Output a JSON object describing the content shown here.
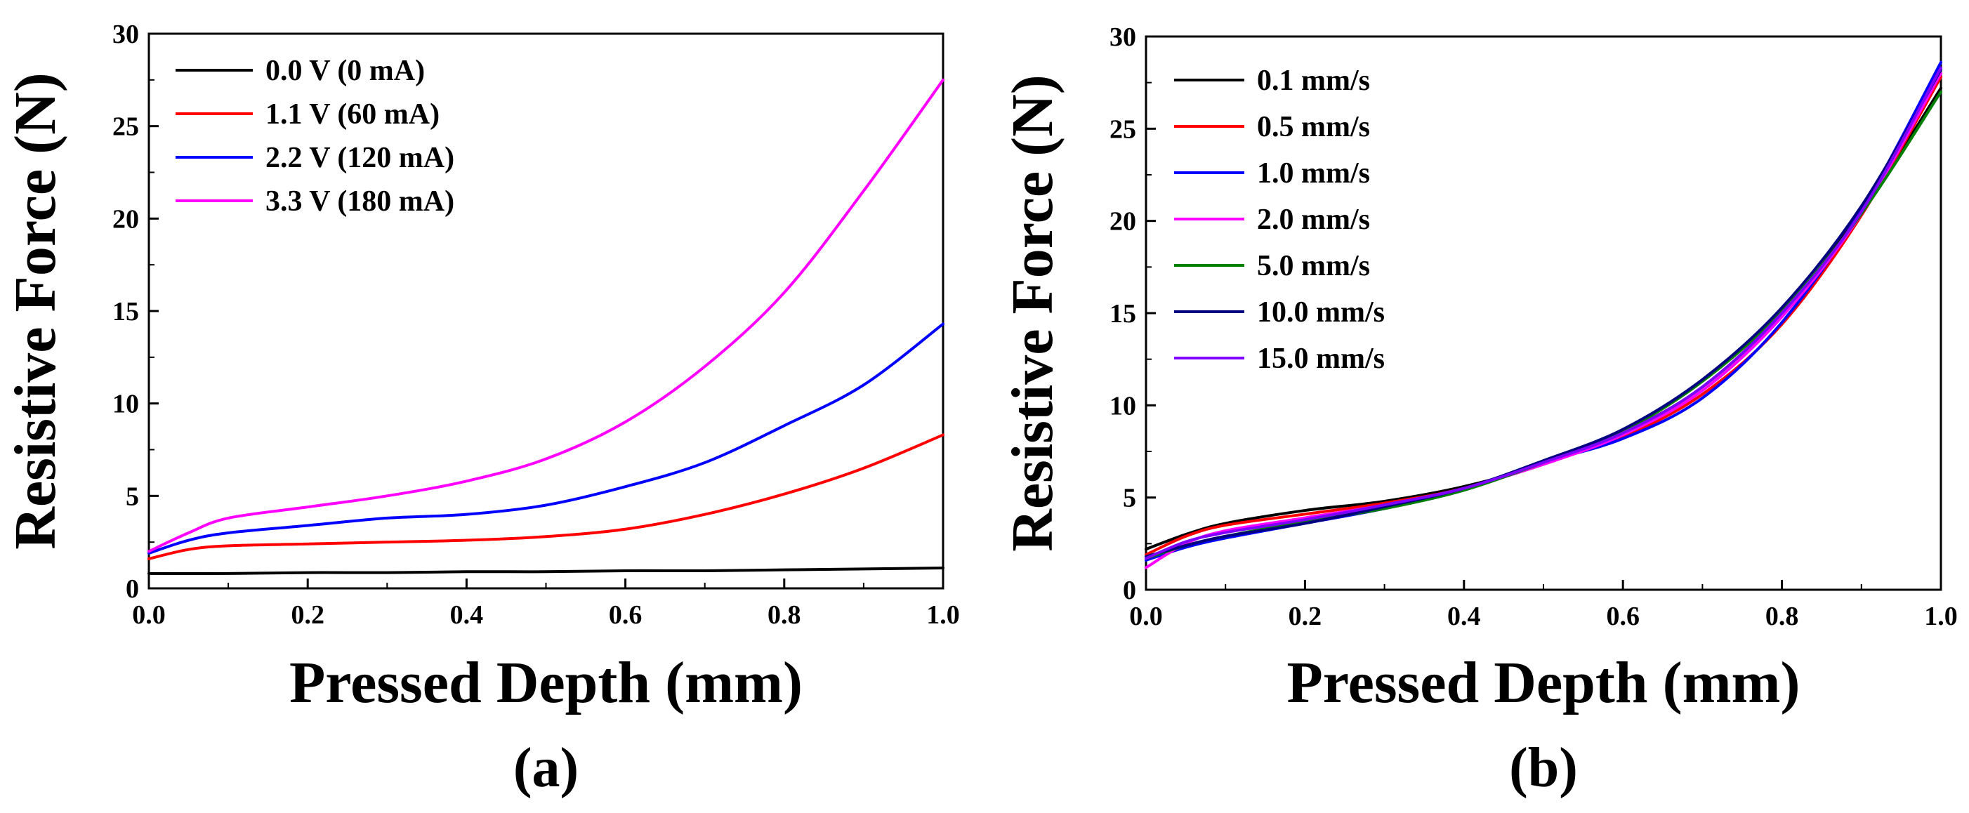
{
  "chart_data": [
    {
      "type": "line",
      "panel_label": "(a)",
      "xlabel": "Pressed Depth (mm)",
      "ylabel": "Resistive Force (N)",
      "xlim": [
        0.0,
        1.0
      ],
      "ylim": [
        0,
        30
      ],
      "xticks": [
        0.0,
        0.2,
        0.4,
        0.6,
        0.8,
        1.0
      ],
      "xtick_labels": [
        "0.0",
        "0.2",
        "0.4",
        "0.6",
        "0.8",
        "1.0"
      ],
      "yticks": [
        0,
        5,
        10,
        15,
        20,
        25,
        30
      ],
      "ytick_labels": [
        "0",
        "5",
        "10",
        "15",
        "20",
        "25",
        "30"
      ],
      "grid": false,
      "legend_position": "top-left",
      "series": [
        {
          "name": "0.0 V (0 mA)",
          "color": "#000000",
          "x": [
            0.0,
            0.1,
            0.2,
            0.3,
            0.4,
            0.5,
            0.6,
            0.7,
            0.8,
            0.9,
            1.0
          ],
          "y": [
            0.8,
            0.8,
            0.85,
            0.85,
            0.9,
            0.9,
            0.95,
            0.95,
            1.0,
            1.05,
            1.1
          ]
        },
        {
          "name": "1.1 V (60 mA)",
          "color": "#ff0000",
          "x": [
            0.0,
            0.05,
            0.1,
            0.2,
            0.3,
            0.4,
            0.5,
            0.6,
            0.7,
            0.8,
            0.9,
            1.0
          ],
          "y": [
            1.6,
            2.1,
            2.3,
            2.4,
            2.5,
            2.6,
            2.8,
            3.2,
            4.0,
            5.1,
            6.5,
            8.3
          ]
        },
        {
          "name": "2.2 V (120 mA)",
          "color": "#0000ff",
          "x": [
            0.0,
            0.05,
            0.1,
            0.2,
            0.3,
            0.4,
            0.5,
            0.6,
            0.7,
            0.8,
            0.9,
            1.0
          ],
          "y": [
            1.9,
            2.6,
            3.0,
            3.4,
            3.8,
            4.0,
            4.5,
            5.5,
            6.8,
            8.8,
            11.0,
            14.3
          ]
        },
        {
          "name": "3.3 V (180 mA)",
          "color": "#ff00ff",
          "x": [
            0.0,
            0.05,
            0.1,
            0.2,
            0.3,
            0.4,
            0.5,
            0.6,
            0.7,
            0.8,
            0.9,
            1.0
          ],
          "y": [
            2.0,
            3.0,
            3.8,
            4.4,
            5.0,
            5.8,
            7.0,
            9.0,
            12.0,
            16.0,
            21.5,
            27.5
          ]
        }
      ]
    },
    {
      "type": "line",
      "panel_label": "(b)",
      "xlabel": "Pressed Depth (mm)",
      "ylabel": "Resistive Force (N)",
      "xlim": [
        0.0,
        1.0
      ],
      "ylim": [
        0,
        30
      ],
      "xticks": [
        0.0,
        0.2,
        0.4,
        0.6,
        0.8,
        1.0
      ],
      "xtick_labels": [
        "0.0",
        "0.2",
        "0.4",
        "0.6",
        "0.8",
        "1.0"
      ],
      "yticks": [
        0,
        5,
        10,
        15,
        20,
        25,
        30
      ],
      "ytick_labels": [
        "0",
        "5",
        "10",
        "15",
        "20",
        "25",
        "30"
      ],
      "grid": false,
      "legend_position": "top-left",
      "series": [
        {
          "name": "0.1 mm/s",
          "color": "#000000",
          "x": [
            0.0,
            0.05,
            0.1,
            0.2,
            0.3,
            0.4,
            0.5,
            0.6,
            0.7,
            0.8,
            0.9,
            1.0
          ],
          "y": [
            2.2,
            3.0,
            3.6,
            4.3,
            4.8,
            5.6,
            6.8,
            8.5,
            11.0,
            15.0,
            20.5,
            27.2
          ]
        },
        {
          "name": "0.5 mm/s",
          "color": "#ff0000",
          "x": [
            0.0,
            0.05,
            0.1,
            0.2,
            0.3,
            0.4,
            0.5,
            0.6,
            0.7,
            0.8,
            0.9,
            1.0
          ],
          "y": [
            1.9,
            2.9,
            3.5,
            4.1,
            4.7,
            5.5,
            6.9,
            8.3,
            10.6,
            14.4,
            20.3,
            27.8
          ]
        },
        {
          "name": "1.0 mm/s",
          "color": "#0000ff",
          "x": [
            0.0,
            0.05,
            0.1,
            0.2,
            0.3,
            0.4,
            0.5,
            0.6,
            0.7,
            0.8,
            0.9,
            1.0
          ],
          "y": [
            1.6,
            2.3,
            2.8,
            3.6,
            4.4,
            5.4,
            6.9,
            8.2,
            10.4,
            14.5,
            20.6,
            28.6
          ]
        },
        {
          "name": "2.0 mm/s",
          "color": "#ff00ff",
          "x": [
            0.0,
            0.05,
            0.1,
            0.2,
            0.3,
            0.4,
            0.5,
            0.6,
            0.7,
            0.8,
            0.9,
            1.0
          ],
          "y": [
            1.2,
            2.5,
            3.2,
            3.9,
            4.6,
            5.5,
            6.8,
            8.4,
            10.8,
            14.8,
            20.4,
            28.0
          ]
        },
        {
          "name": "5.0 mm/s",
          "color": "#008000",
          "x": [
            0.0,
            0.05,
            0.1,
            0.2,
            0.3,
            0.4,
            0.5,
            0.6,
            0.7,
            0.8,
            0.9,
            1.0
          ],
          "y": [
            1.7,
            2.4,
            2.9,
            3.7,
            4.4,
            5.4,
            6.9,
            8.6,
            11.3,
            15.1,
            20.4,
            27.0
          ]
        },
        {
          "name": "10.0 mm/s",
          "color": "#000080",
          "x": [
            0.0,
            0.05,
            0.1,
            0.2,
            0.3,
            0.4,
            0.5,
            0.6,
            0.7,
            0.8,
            0.9,
            1.0
          ],
          "y": [
            1.8,
            2.4,
            2.9,
            3.6,
            4.5,
            5.5,
            7.0,
            8.7,
            11.4,
            15.3,
            20.8,
            28.2
          ]
        },
        {
          "name": "15.0 mm/s",
          "color": "#8000ff",
          "x": [
            0.0,
            0.05,
            0.1,
            0.2,
            0.3,
            0.4,
            0.5,
            0.6,
            0.7,
            0.8,
            0.9,
            1.0
          ],
          "y": [
            1.7,
            2.6,
            3.1,
            3.8,
            4.6,
            5.5,
            6.9,
            8.5,
            11.0,
            15.0,
            20.5,
            28.3
          ]
        }
      ]
    }
  ]
}
